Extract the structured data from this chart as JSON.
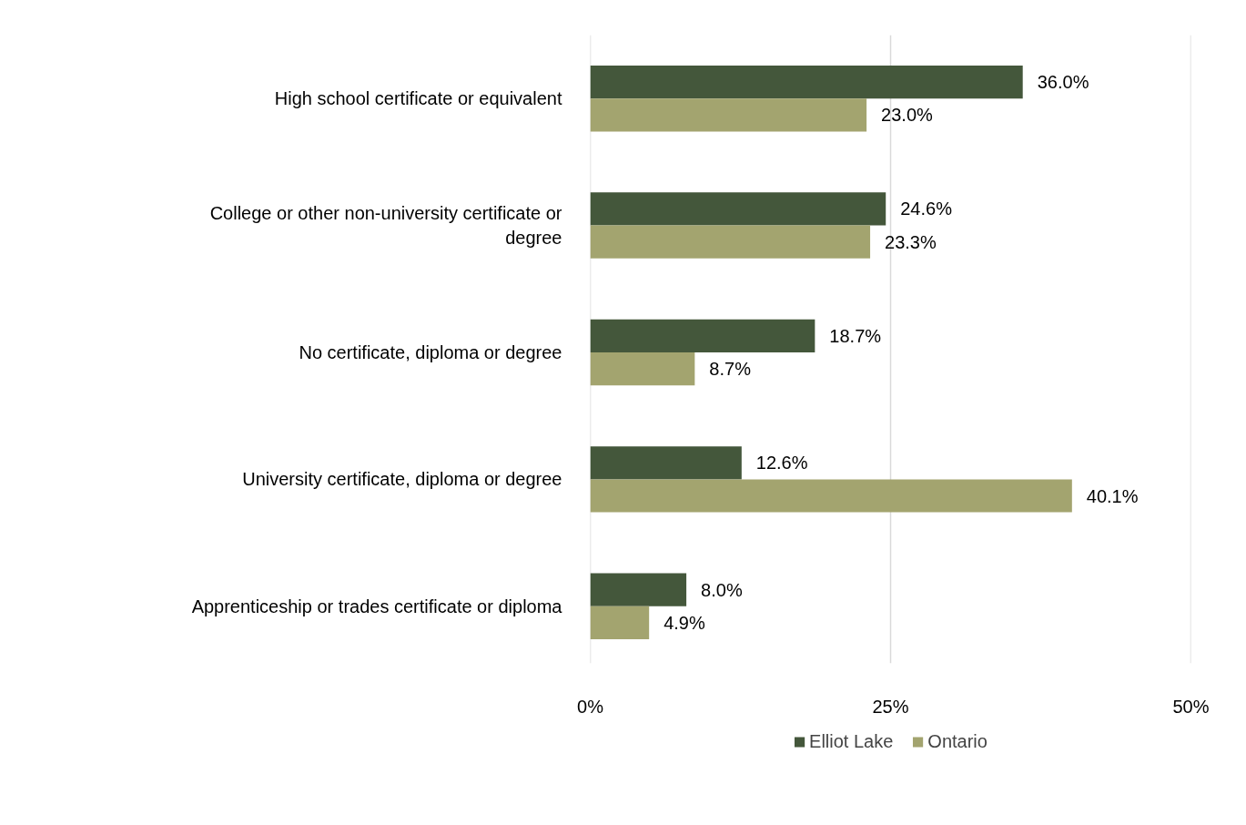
{
  "chart_data": {
    "type": "bar",
    "orientation": "horizontal",
    "categories": [
      "High school certificate or equivalent",
      "College or other non-university certificate or degree",
      "No certificate, diploma or degree",
      "University certificate, diploma or degree",
      "Apprenticeship or trades certificate or diploma"
    ],
    "series": [
      {
        "name": "Elliot Lake",
        "color": "#44573b",
        "values": [
          36.0,
          24.6,
          18.7,
          12.6,
          8.0
        ],
        "value_labels": [
          "36.0%",
          "24.6%",
          "18.7%",
          "12.6%",
          "8.0%"
        ]
      },
      {
        "name": "Ontario",
        "color": "#a3a46f",
        "values": [
          23.0,
          23.3,
          8.7,
          40.1,
          4.9
        ],
        "value_labels": [
          "23.0%",
          "23.3%",
          "8.7%",
          "40.1%",
          "4.9%"
        ]
      }
    ],
    "xlim": [
      0,
      50
    ],
    "xticks": [
      {
        "value": 0,
        "label": "0%"
      },
      {
        "value": 25,
        "label": "25%"
      },
      {
        "value": 50,
        "label": "50%"
      }
    ],
    "grid": "x",
    "legend": "bottom"
  }
}
